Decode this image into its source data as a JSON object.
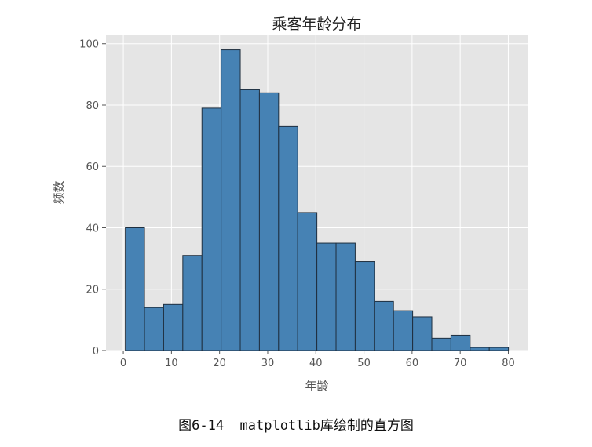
{
  "chart_data": {
    "type": "bar",
    "title": "乘客年龄分布",
    "xlabel": "年龄",
    "ylabel": "频数",
    "bins": [
      [
        0.42,
        4.4
      ],
      [
        4.4,
        8.38
      ],
      [
        8.38,
        12.36
      ],
      [
        12.36,
        16.34
      ],
      [
        16.34,
        20.32
      ],
      [
        20.32,
        24.3
      ],
      [
        24.3,
        28.28
      ],
      [
        28.28,
        32.26
      ],
      [
        32.26,
        36.24
      ],
      [
        36.24,
        40.22
      ],
      [
        40.22,
        44.2
      ],
      [
        44.2,
        48.18
      ],
      [
        48.18,
        52.16
      ],
      [
        52.16,
        56.14
      ],
      [
        56.14,
        60.12
      ],
      [
        60.12,
        64.1
      ],
      [
        64.1,
        68.08
      ],
      [
        68.08,
        72.06
      ],
      [
        72.06,
        76.04
      ],
      [
        76.04,
        80.02
      ]
    ],
    "values": [
      40,
      14,
      15,
      31,
      79,
      98,
      85,
      84,
      73,
      45,
      35,
      35,
      29,
      16,
      13,
      11,
      4,
      5,
      1,
      1
    ],
    "xlim": [
      -3.6,
      84.0
    ],
    "ylim": [
      0,
      103
    ],
    "xticks": [
      0,
      10,
      20,
      30,
      40,
      50,
      60,
      70,
      80
    ],
    "yticks": [
      0,
      20,
      40,
      60,
      80,
      100
    ],
    "grid": true,
    "bar_color": "#4682b4",
    "edge_color": "#1f2f3f",
    "background_color": "#e5e5e5"
  },
  "caption": "图6-14  matplotlib库绘制的直方图"
}
